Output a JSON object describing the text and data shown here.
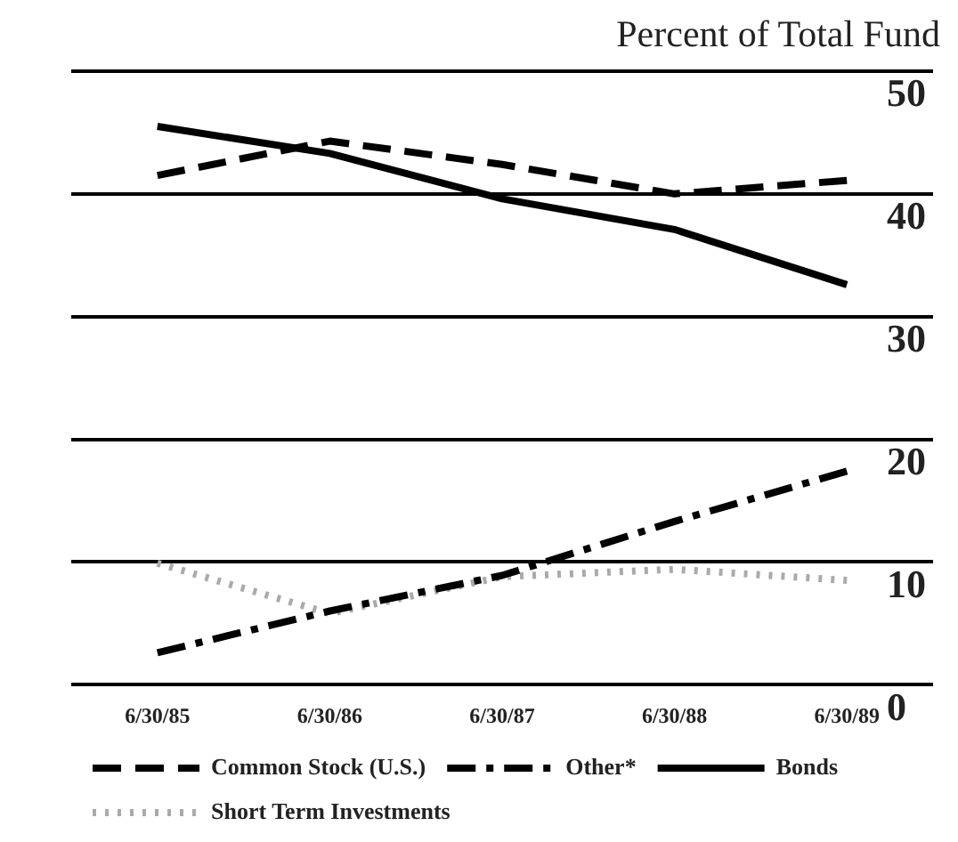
{
  "chart_data": {
    "type": "line",
    "ylabel": "Percent of Total Fund",
    "categories": [
      "6/30/85",
      "6/30/86",
      "6/30/87",
      "6/30/88",
      "6/30/89"
    ],
    "series": [
      {
        "name": "Common Stock (U.S.)",
        "color": "#000000",
        "line_style": "dashed",
        "values": [
          41.5,
          44.3,
          42.4,
          40,
          41.1
        ]
      },
      {
        "name": "Other*",
        "color": "#000000",
        "line_style": "dashdot",
        "values": [
          2.6,
          6,
          8.9,
          13.3,
          17.4
        ]
      },
      {
        "name": "Bonds",
        "color": "#000000",
        "line_style": "solid",
        "values": [
          45.5,
          43.3,
          39.6,
          37.1,
          32.6
        ]
      },
      {
        "name": "Short Term Investments",
        "color": "#aaaaaa",
        "line_style": "dotted",
        "values": [
          9.9,
          5.8,
          8.8,
          9.4,
          8.5
        ]
      }
    ],
    "ylim": [
      0,
      50
    ],
    "yticks": [
      0,
      10,
      20,
      30,
      40,
      50
    ],
    "grid": "y",
    "legend": "bottom",
    "marker": "none"
  }
}
